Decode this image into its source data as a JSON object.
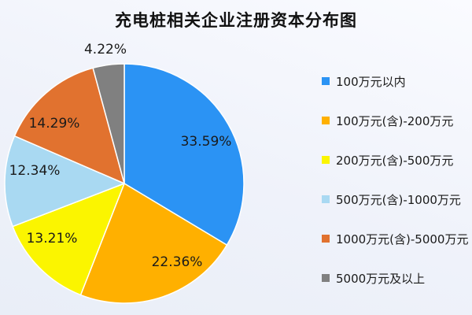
{
  "chart_data": {
    "type": "pie",
    "title": "充电桩相关企业注册资本分布图",
    "legend_position": "right",
    "start_angle": "top",
    "direction": "clockwise",
    "slices": [
      {
        "legend_label": "100万元以内",
        "value": 33.59,
        "display": "33.59%",
        "color": "#2B93F4"
      },
      {
        "legend_label": "100万元(含)-200万元",
        "value": 22.36,
        "display": "22.36%",
        "color": "#FFB000"
      },
      {
        "legend_label": "200万元(含)-500万元",
        "value": 13.21,
        "display": "13.21%",
        "color": "#FBF500"
      },
      {
        "legend_label": "500万元(含)-1000万元",
        "value": 12.34,
        "display": "12.34%",
        "color": "#A9D9F2"
      },
      {
        "legend_label": "1000万元(含)-5000万元",
        "value": 14.29,
        "display": "14.29%",
        "color": "#E1722F"
      },
      {
        "legend_label": "5000万元及以上",
        "value": 4.22,
        "display": "4.22%",
        "color": "#808080"
      }
    ]
  }
}
